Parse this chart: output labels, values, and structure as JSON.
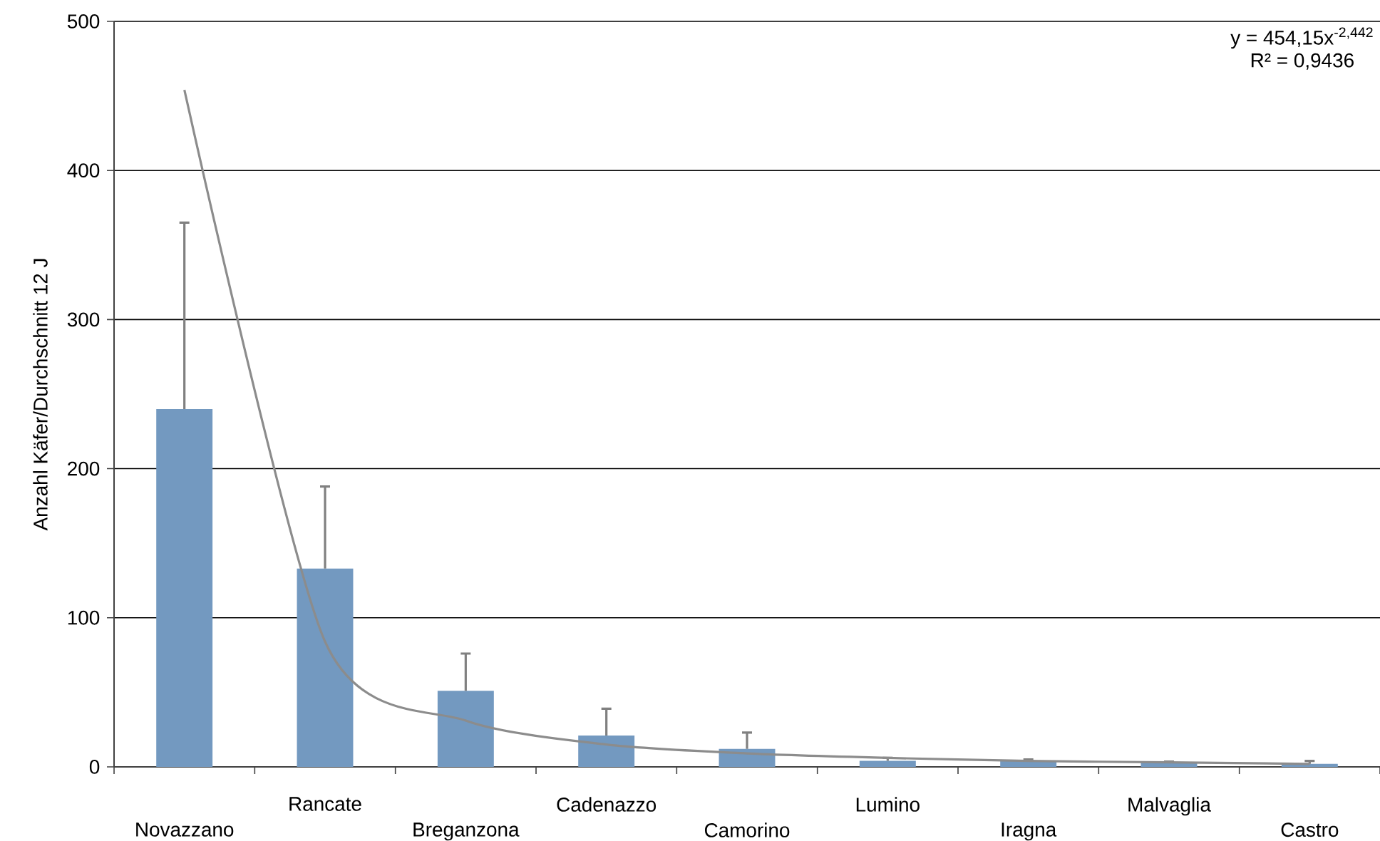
{
  "chart_data": {
    "type": "bar",
    "ylabel": "Anzahl Käfer/Durchschnitt 12 J",
    "categories": [
      "Novazzano",
      "Rancate",
      "Breganzona",
      "Cadenazzo",
      "Camorino",
      "Lumino",
      "Iragna",
      "Malvaglia",
      "Castro"
    ],
    "series": [
      {
        "color": "#7399c0",
        "values": [
          240,
          133,
          51,
          21,
          12,
          4,
          4,
          3,
          2
        ],
        "errors": [
          [
            240,
            365
          ],
          [
            133,
            188
          ],
          [
            51,
            76
          ],
          [
            21,
            39
          ],
          [
            12,
            23
          ],
          [
            4,
            6
          ],
          [
            4,
            5
          ],
          [
            3,
            3.5
          ],
          [
            2,
            4
          ]
        ]
      },
      {
        "type": "line",
        "color": "#8c8c8c",
        "values": [
          454,
          84,
          31,
          15,
          9,
          6,
          4,
          3,
          2
        ]
      }
    ],
    "ylim": [
      0,
      500
    ],
    "yticks": [
      0,
      100,
      200,
      300,
      400,
      500
    ],
    "grid": "y",
    "annotations": [
      "y = 454,15x$^{-2,442}$",
      "R² = 0,9436"
    ]
  }
}
